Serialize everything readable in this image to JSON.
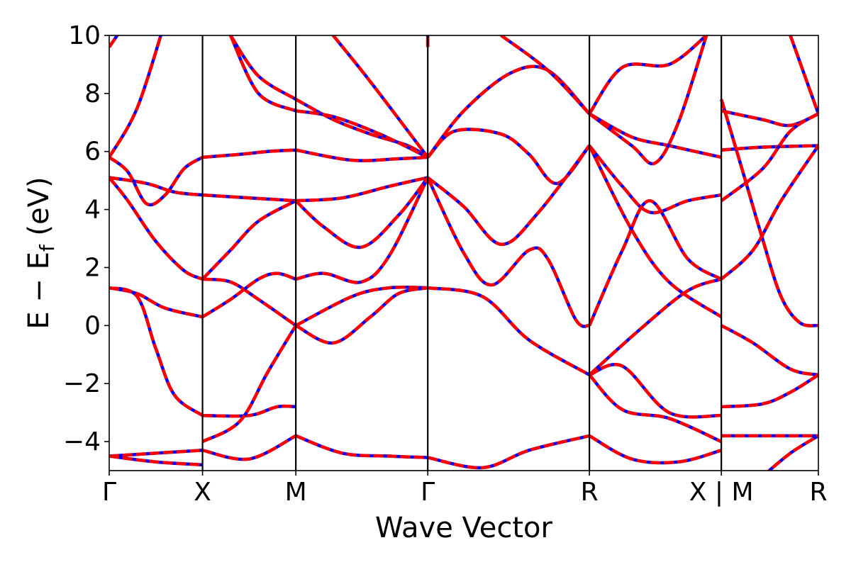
{
  "chart_data": {
    "type": "line",
    "title": "",
    "xlabel": "Wave Vector",
    "ylabel": "E − E",
    "ylabel_sub": "f",
    "ylabel_unit": " (eV)",
    "ylim": [
      -5,
      10
    ],
    "xlim": [
      0,
      7.6
    ],
    "yticks": [
      -4,
      -2,
      0,
      2,
      4,
      6,
      8,
      10
    ],
    "ytick_labels": [
      "−4",
      "−2",
      "0",
      "2",
      "4",
      "6",
      "8",
      "10"
    ],
    "kpoints": [
      {
        "label": "Γ",
        "x": 0
      },
      {
        "label": "X",
        "x": 1
      },
      {
        "label": "M",
        "x": 2
      },
      {
        "label": "Γ",
        "x": 3.414
      },
      {
        "label": "R",
        "x": 5.146
      },
      {
        "label": "X | M",
        "x": 6.56
      },
      {
        "label": "R",
        "x": 7.6
      }
    ],
    "grid": false,
    "legend": "none",
    "series_style": [
      {
        "color": "#0000ff",
        "dash": "solid"
      },
      {
        "color": "#ff0000",
        "dash": "dashed"
      }
    ],
    "bands": [
      {
        "segment": "Γ-X",
        "points": [
          [
            0,
            9.6
          ],
          [
            0.3,
            11
          ]
        ]
      },
      {
        "segment": "Γ-X",
        "points": [
          [
            0,
            5.8
          ],
          [
            0.3,
            7.5
          ],
          [
            0.6,
            10.5
          ]
        ]
      },
      {
        "segment": "Γ-X",
        "points": [
          [
            0,
            5.8
          ],
          [
            0.2,
            5.3
          ],
          [
            0.4,
            4.2
          ],
          [
            0.6,
            4.5
          ],
          [
            0.8,
            5.4
          ],
          [
            1,
            5.8
          ]
        ]
      },
      {
        "segment": "Γ-X",
        "points": [
          [
            0,
            5.1
          ],
          [
            0.4,
            4.9
          ],
          [
            0.7,
            4.6
          ],
          [
            1,
            4.5
          ]
        ]
      },
      {
        "segment": "Γ-X",
        "points": [
          [
            0,
            5.1
          ],
          [
            0.2,
            4.3
          ],
          [
            0.5,
            2.9
          ],
          [
            0.8,
            1.9
          ],
          [
            1,
            1.6
          ]
        ]
      },
      {
        "segment": "Γ-X",
        "points": [
          [
            0,
            1.3
          ],
          [
            0.3,
            1.1
          ],
          [
            0.6,
            0.6
          ],
          [
            1,
            0.3
          ]
        ]
      },
      {
        "segment": "Γ-X",
        "points": [
          [
            0,
            1.3
          ],
          [
            0.3,
            1.0
          ],
          [
            0.5,
            -0.8
          ],
          [
            0.7,
            -2.4
          ],
          [
            1,
            -3.1
          ]
        ]
      },
      {
        "segment": "Γ-X",
        "points": [
          [
            0,
            -4.5
          ],
          [
            0.5,
            -4.4
          ],
          [
            1,
            -4.3
          ]
        ]
      },
      {
        "segment": "Γ-X",
        "points": [
          [
            0,
            -4.5
          ],
          [
            0.5,
            -4.7
          ],
          [
            1,
            -4.8
          ]
        ]
      },
      {
        "segment": "X-M",
        "points": [
          [
            1,
            5.8
          ],
          [
            1.4,
            5.9
          ],
          [
            1.7,
            6.0
          ],
          [
            2,
            6.05
          ]
        ]
      },
      {
        "segment": "X-M",
        "points": [
          [
            1,
            4.5
          ],
          [
            1.5,
            4.4
          ],
          [
            2,
            4.3
          ]
        ]
      },
      {
        "segment": "X-M",
        "points": [
          [
            1,
            1.6
          ],
          [
            1.3,
            2.6
          ],
          [
            1.6,
            3.6
          ],
          [
            2,
            4.3
          ]
        ]
      },
      {
        "segment": "X-M",
        "points": [
          [
            1,
            1.6
          ],
          [
            1.3,
            1.5
          ],
          [
            1.6,
            0.9
          ],
          [
            2,
            0.0
          ]
        ]
      },
      {
        "segment": "X-M",
        "points": [
          [
            1,
            0.3
          ],
          [
            1.3,
            0.9
          ],
          [
            1.6,
            1.6
          ],
          [
            1.8,
            1.8
          ],
          [
            2,
            1.6
          ]
        ]
      },
      {
        "segment": "X-M",
        "points": [
          [
            1,
            -3.1
          ],
          [
            1.5,
            -3.1
          ],
          [
            1.8,
            -2.8
          ],
          [
            2,
            -2.8
          ]
        ]
      },
      {
        "segment": "X-M",
        "points": [
          [
            1,
            -4.0
          ],
          [
            1.4,
            -3.3
          ],
          [
            1.7,
            -1.6
          ],
          [
            2,
            0.0
          ]
        ]
      },
      {
        "segment": "X-M",
        "points": [
          [
            1,
            -4.3
          ],
          [
            1.5,
            -4.6
          ],
          [
            2,
            -3.8
          ]
        ]
      },
      {
        "segment": "X-M",
        "points": [
          [
            1.3,
            10
          ],
          [
            1.6,
            8.6
          ],
          [
            2,
            7.8
          ]
        ]
      },
      {
        "segment": "X-M",
        "points": [
          [
            1.3,
            10
          ],
          [
            1.6,
            8.0
          ],
          [
            2,
            7.4
          ]
        ]
      },
      {
        "segment": "M-Γ",
        "points": [
          [
            2,
            7.8
          ],
          [
            2.4,
            7.1
          ],
          [
            2.8,
            6.6
          ],
          [
            3.2,
            6.2
          ],
          [
            3.414,
            5.8
          ]
        ]
      },
      {
        "segment": "M-Γ",
        "points": [
          [
            2,
            7.4
          ],
          [
            2.4,
            7.2
          ],
          [
            2.9,
            6.6
          ],
          [
            3.414,
            5.8
          ]
        ]
      },
      {
        "segment": "M-Γ",
        "points": [
          [
            2,
            6.05
          ],
          [
            2.6,
            5.7
          ],
          [
            3.1,
            5.75
          ],
          [
            3.414,
            5.8
          ]
        ]
      },
      {
        "segment": "M-Γ",
        "points": [
          [
            2,
            4.3
          ],
          [
            2.5,
            4.4
          ],
          [
            3.0,
            4.8
          ],
          [
            3.414,
            5.1
          ]
        ]
      },
      {
        "segment": "M-Γ",
        "points": [
          [
            2,
            4.3
          ],
          [
            2.3,
            3.4
          ],
          [
            2.7,
            2.7
          ],
          [
            3.1,
            3.8
          ],
          [
            3.414,
            5.1
          ]
        ]
      },
      {
        "segment": "M-Γ",
        "points": [
          [
            2,
            1.6
          ],
          [
            2.3,
            1.8
          ],
          [
            2.7,
            1.5
          ],
          [
            3.0,
            2.4
          ],
          [
            3.414,
            5.1
          ]
        ]
      },
      {
        "segment": "M-Γ",
        "points": [
          [
            2,
            0.0
          ],
          [
            2.6,
            1.0
          ],
          [
            3.0,
            1.3
          ],
          [
            3.414,
            1.3
          ]
        ]
      },
      {
        "segment": "M-Γ",
        "points": [
          [
            2,
            0.0
          ],
          [
            2.4,
            -0.6
          ],
          [
            2.8,
            0.3
          ],
          [
            3.1,
            1.1
          ],
          [
            3.414,
            1.3
          ]
        ]
      },
      {
        "segment": "M-Γ",
        "points": [
          [
            2,
            -3.8
          ],
          [
            2.5,
            -4.4
          ],
          [
            3.0,
            -4.5
          ],
          [
            3.414,
            -4.55
          ]
        ]
      },
      {
        "segment": "M-Γ",
        "points": [
          [
            2.4,
            10
          ],
          [
            2.8,
            8.4
          ],
          [
            3.414,
            5.8
          ]
        ]
      },
      {
        "segment": "Γ-R",
        "points": [
          [
            3.414,
            9.6
          ],
          [
            3.414,
            10
          ]
        ]
      },
      {
        "segment": "Γ-R",
        "points": [
          [
            3.414,
            5.8
          ],
          [
            3.8,
            7.4
          ],
          [
            4.3,
            8.7
          ],
          [
            4.7,
            8.8
          ],
          [
            5.146,
            7.3
          ]
        ]
      },
      {
        "segment": "Γ-R",
        "points": [
          [
            3.414,
            5.8
          ],
          [
            3.7,
            6.7
          ],
          [
            4.2,
            6.6
          ],
          [
            4.5,
            5.9
          ],
          [
            4.8,
            4.9
          ],
          [
            5.146,
            6.2
          ]
        ]
      },
      {
        "segment": "Γ-R",
        "points": [
          [
            3.414,
            5.1
          ],
          [
            3.8,
            4.1
          ],
          [
            4.2,
            2.8
          ],
          [
            4.6,
            3.9
          ],
          [
            5.146,
            6.2
          ]
        ]
      },
      {
        "segment": "Γ-R",
        "points": [
          [
            3.414,
            5.1
          ],
          [
            3.8,
            2.5
          ],
          [
            4.1,
            1.4
          ],
          [
            4.5,
            2.6
          ],
          [
            4.7,
            2.3
          ],
          [
            5.0,
            0.2
          ],
          [
            5.146,
            0.0
          ]
        ]
      },
      {
        "segment": "Γ-R",
        "points": [
          [
            3.414,
            1.3
          ],
          [
            4.0,
            1.0
          ],
          [
            4.5,
            -0.5
          ],
          [
            5.146,
            -1.7
          ]
        ]
      },
      {
        "segment": "Γ-R",
        "points": [
          [
            3.414,
            -4.55
          ],
          [
            4.0,
            -4.9
          ],
          [
            4.5,
            -4.3
          ],
          [
            5.146,
            -3.8
          ]
        ]
      },
      {
        "segment": "Γ-R",
        "points": [
          [
            4.2,
            10
          ],
          [
            4.7,
            8.8
          ],
          [
            5.146,
            7.3
          ]
        ]
      },
      {
        "segment": "R-X",
        "points": [
          [
            5.146,
            7.3
          ],
          [
            5.5,
            8.9
          ],
          [
            6.0,
            9.0
          ],
          [
            6.4,
            10
          ]
        ]
      },
      {
        "segment": "R-X",
        "points": [
          [
            5.146,
            7.3
          ],
          [
            5.6,
            6.5
          ],
          [
            6.0,
            6.2
          ],
          [
            6.56,
            5.8
          ]
        ]
      },
      {
        "segment": "R-X",
        "points": [
          [
            5.146,
            7.3
          ],
          [
            5.6,
            6.2
          ],
          [
            5.85,
            5.6
          ],
          [
            6.1,
            7.0
          ],
          [
            6.4,
            10
          ]
        ]
      },
      {
        "segment": "R-X",
        "points": [
          [
            5.146,
            6.2
          ],
          [
            5.5,
            4.8
          ],
          [
            5.8,
            3.9
          ],
          [
            6.2,
            4.3
          ],
          [
            6.56,
            4.5
          ]
        ]
      },
      {
        "segment": "R-X",
        "points": [
          [
            5.146,
            6.2
          ],
          [
            5.6,
            3.3
          ],
          [
            6.0,
            1.5
          ],
          [
            6.56,
            0.3
          ]
        ]
      },
      {
        "segment": "R-X",
        "points": [
          [
            5.146,
            0.0
          ],
          [
            5.5,
            2.6
          ],
          [
            5.8,
            4.3
          ],
          [
            6.2,
            2.3
          ],
          [
            6.56,
            1.6
          ]
        ]
      },
      {
        "segment": "R-X",
        "points": [
          [
            5.146,
            -1.7
          ],
          [
            5.7,
            -0.1
          ],
          [
            6.2,
            1.2
          ],
          [
            6.56,
            1.6
          ]
        ]
      },
      {
        "segment": "R-X",
        "points": [
          [
            5.146,
            -1.7
          ],
          [
            5.5,
            -1.4
          ],
          [
            6.0,
            -3.0
          ],
          [
            6.56,
            -3.1
          ]
        ]
      },
      {
        "segment": "R-X",
        "points": [
          [
            5.146,
            -1.7
          ],
          [
            5.5,
            -2.9
          ],
          [
            6.0,
            -3.2
          ],
          [
            6.56,
            -4.0
          ]
        ]
      },
      {
        "segment": "R-X",
        "points": [
          [
            5.146,
            -3.8
          ],
          [
            5.6,
            -4.6
          ],
          [
            6.1,
            -4.7
          ],
          [
            6.56,
            -4.3
          ]
        ]
      },
      {
        "segment": "M-R",
        "points": [
          [
            6.56,
            7.8
          ],
          [
            6.8,
            5.2
          ],
          [
            7.0,
            3.0
          ],
          [
            7.2,
            1.0
          ],
          [
            7.4,
            0.1
          ],
          [
            7.6,
            0.0
          ]
        ]
      },
      {
        "segment": "M-R",
        "points": [
          [
            6.56,
            7.4
          ],
          [
            7.0,
            7.1
          ],
          [
            7.3,
            6.9
          ],
          [
            7.6,
            7.3
          ]
        ]
      },
      {
        "segment": "M-R",
        "points": [
          [
            6.56,
            6.05
          ],
          [
            7.0,
            6.15
          ],
          [
            7.6,
            6.2
          ]
        ]
      },
      {
        "segment": "M-R",
        "points": [
          [
            6.56,
            4.3
          ],
          [
            7.0,
            5.4
          ],
          [
            7.3,
            6.7
          ],
          [
            7.6,
            7.3
          ]
        ]
      },
      {
        "segment": "M-R",
        "points": [
          [
            6.56,
            1.6
          ],
          [
            6.9,
            2.6
          ],
          [
            7.2,
            4.3
          ],
          [
            7.6,
            6.2
          ]
        ]
      },
      {
        "segment": "M-R",
        "points": [
          [
            6.56,
            0.0
          ],
          [
            6.9,
            -0.6
          ],
          [
            7.3,
            -1.5
          ],
          [
            7.6,
            -1.7
          ]
        ]
      },
      {
        "segment": "M-R",
        "points": [
          [
            6.56,
            -2.8
          ],
          [
            7.0,
            -2.7
          ],
          [
            7.3,
            -2.3
          ],
          [
            7.6,
            -1.7
          ]
        ]
      },
      {
        "segment": "M-R",
        "points": [
          [
            6.56,
            -3.8
          ],
          [
            7.6,
            -3.8
          ]
        ]
      },
      {
        "segment": "M-R",
        "points": [
          [
            7.0,
            -5.2
          ],
          [
            7.3,
            -4.4
          ],
          [
            7.6,
            -3.8
          ]
        ]
      },
      {
        "segment": "M-R",
        "points": [
          [
            7.3,
            10
          ],
          [
            7.6,
            7.3
          ]
        ]
      }
    ]
  }
}
